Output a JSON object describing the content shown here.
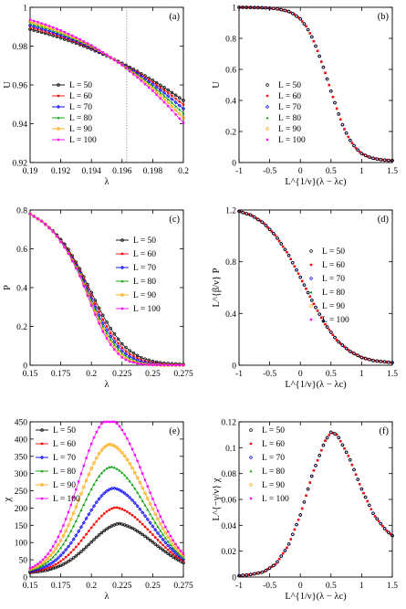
{
  "legend_labels": [
    "L = 50",
    "L = 60",
    "L = 70",
    "L = 80",
    "L = 90",
    "L = 100"
  ],
  "series_colors": [
    "#000000",
    "#ff0000",
    "#0000ff",
    "#00a000",
    "#ffa500",
    "#ff00ff"
  ],
  "chart_data": [
    {
      "panel": "(a)",
      "type": "line",
      "xlabel": "λ",
      "ylabel": "U",
      "xlim": [
        0.19,
        0.2
      ],
      "ylim": [
        0.92,
        1.0
      ],
      "xticks": [
        "0.19",
        "0.192",
        "0.194",
        "0.196",
        "0.198",
        "0.2"
      ],
      "yticks": [
        "0.92",
        "0.94",
        "0.96",
        "0.98",
        "1"
      ],
      "grid": false,
      "legend": "lower-left",
      "vline_x": 0.1963,
      "x": [
        0.19,
        0.191,
        0.192,
        0.193,
        0.194,
        0.195,
        0.196,
        0.197,
        0.198,
        0.199,
        0.2
      ],
      "series": [
        {
          "name": "L = 50",
          "values": [
            0.9887,
            0.9866,
            0.9842,
            0.9815,
            0.9784,
            0.975,
            0.9712,
            0.967,
            0.9624,
            0.9574,
            0.952
          ]
        },
        {
          "name": "L = 60",
          "values": [
            0.9897,
            0.9875,
            0.985,
            0.9821,
            0.9788,
            0.9751,
            0.971,
            0.9664,
            0.9614,
            0.9559,
            0.9499
          ]
        },
        {
          "name": "L = 70",
          "values": [
            0.9907,
            0.9884,
            0.9857,
            0.9827,
            0.9792,
            0.9752,
            0.9708,
            0.9658,
            0.9603,
            0.9543,
            0.9477
          ]
        },
        {
          "name": "L = 80",
          "values": [
            0.9917,
            0.9893,
            0.9865,
            0.9833,
            0.9796,
            0.9754,
            0.9706,
            0.9652,
            0.9592,
            0.9526,
            0.9454
          ]
        },
        {
          "name": "L = 90",
          "values": [
            0.9926,
            0.9902,
            0.9873,
            0.9839,
            0.98,
            0.9755,
            0.9704,
            0.9646,
            0.9581,
            0.9509,
            0.943
          ]
        },
        {
          "name": "L = 100",
          "values": [
            0.9936,
            0.9911,
            0.9881,
            0.9845,
            0.9804,
            0.9756,
            0.9701,
            0.9639,
            0.9569,
            0.9491,
            0.9405
          ]
        }
      ]
    },
    {
      "panel": "(b)",
      "type": "scatter",
      "xlabel": "L^{1/ν}(λ − λc)",
      "ylabel": "U",
      "xlim": [
        -1,
        1.5
      ],
      "ylim": [
        0,
        1.0
      ],
      "xticks": [
        "-1",
        "-0.5",
        "0",
        "0.5",
        "1",
        "1.5"
      ],
      "yticks": [
        "0",
        "0.2",
        "0.4",
        "0.6",
        "0.8",
        "1"
      ],
      "grid": false,
      "legend": "left",
      "x": [
        -1.0,
        -0.8,
        -0.6,
        -0.4,
        -0.2,
        -0.1,
        0.0,
        0.1,
        0.2,
        0.3,
        0.4,
        0.5,
        0.6,
        0.7,
        0.8,
        0.9,
        1.0,
        1.1,
        1.2,
        1.3,
        1.4,
        1.5
      ],
      "values": [
        1.0,
        0.999,
        0.997,
        0.992,
        0.975,
        0.955,
        0.925,
        0.875,
        0.8,
        0.7,
        0.585,
        0.46,
        0.34,
        0.23,
        0.15,
        0.095,
        0.058,
        0.038,
        0.026,
        0.019,
        0.015,
        0.013
      ]
    },
    {
      "panel": "(c)",
      "type": "line",
      "xlabel": "λ",
      "ylabel": "P",
      "xlim": [
        0.15,
        0.275
      ],
      "ylim": [
        0,
        0.8
      ],
      "xticks": [
        "0.15",
        "0.175",
        "0.2",
        "0.225",
        "0.25",
        "0.275"
      ],
      "yticks": [
        "0",
        "0.2",
        "0.4",
        "0.6",
        "0.8"
      ],
      "grid": false,
      "legend": "upper-right",
      "x": [
        0.15,
        0.16,
        0.17,
        0.18,
        0.19,
        0.195,
        0.2,
        0.205,
        0.21,
        0.215,
        0.22,
        0.225,
        0.23,
        0.24,
        0.25,
        0.26,
        0.275
      ],
      "series": [
        {
          "name": "L = 50",
          "values": [
            0.78,
            0.74,
            0.685,
            0.61,
            0.505,
            0.44,
            0.375,
            0.31,
            0.25,
            0.195,
            0.15,
            0.11,
            0.08,
            0.04,
            0.02,
            0.01,
            0.005
          ]
        },
        {
          "name": "L = 60",
          "values": [
            0.78,
            0.74,
            0.684,
            0.605,
            0.495,
            0.428,
            0.358,
            0.29,
            0.228,
            0.172,
            0.128,
            0.09,
            0.062,
            0.028,
            0.012,
            0.005,
            0.002
          ]
        },
        {
          "name": "L = 70",
          "values": [
            0.78,
            0.74,
            0.683,
            0.6,
            0.487,
            0.416,
            0.343,
            0.272,
            0.208,
            0.154,
            0.11,
            0.074,
            0.048,
            0.019,
            0.007,
            0.002,
            0.001
          ]
        },
        {
          "name": "L = 80",
          "values": [
            0.78,
            0.74,
            0.682,
            0.596,
            0.48,
            0.406,
            0.33,
            0.257,
            0.192,
            0.138,
            0.095,
            0.061,
            0.037,
            0.012,
            0.004,
            0.001,
            0.0
          ]
        },
        {
          "name": "L = 90",
          "values": [
            0.78,
            0.74,
            0.681,
            0.593,
            0.474,
            0.397,
            0.319,
            0.244,
            0.178,
            0.124,
            0.082,
            0.05,
            0.028,
            0.008,
            0.002,
            0.0,
            0.0
          ]
        },
        {
          "name": "L = 100",
          "values": [
            0.78,
            0.74,
            0.68,
            0.59,
            0.468,
            0.388,
            0.308,
            0.232,
            0.165,
            0.111,
            0.07,
            0.04,
            0.021,
            0.005,
            0.001,
            0.0,
            0.0
          ]
        }
      ]
    },
    {
      "panel": "(d)",
      "type": "scatter",
      "xlabel": "L^{1/ν}(λ − λc)",
      "ylabel": "L^{β/ν} P",
      "xlim": [
        -1,
        1.5
      ],
      "ylim": [
        0,
        1.2
      ],
      "xticks": [
        "-1",
        "-0.5",
        "0",
        "0.5",
        "1",
        "1.5"
      ],
      "yticks": [
        "0",
        "0.4",
        "0.8",
        "1.2"
      ],
      "grid": false,
      "legend": "right",
      "x": [
        -1.0,
        -0.8,
        -0.6,
        -0.4,
        -0.2,
        0.0,
        0.2,
        0.4,
        0.6,
        0.8,
        1.0,
        1.2,
        1.4,
        1.5
      ],
      "values": [
        1.19,
        1.16,
        1.1,
        1.0,
        0.86,
        0.68,
        0.49,
        0.32,
        0.19,
        0.11,
        0.06,
        0.035,
        0.025,
        0.02
      ]
    },
    {
      "panel": "(e)",
      "type": "line",
      "xlabel": "λ",
      "ylabel": "χ",
      "xlim": [
        0.15,
        0.275
      ],
      "ylim": [
        0,
        450
      ],
      "xticks": [
        "0.15",
        "0.175",
        "0.2",
        "0.225",
        "0.25",
        "0.275"
      ],
      "yticks": [
        "0",
        "50",
        "100",
        "150",
        "200",
        "250",
        "300",
        "350",
        "400",
        "450"
      ],
      "grid": false,
      "legend": "upper-left",
      "series": [
        {
          "name": "L = 50",
          "peak_x": 0.2225,
          "peak_y": 125,
          "base": 5
        },
        {
          "name": "L = 60",
          "peak_x": 0.22,
          "peak_y": 172,
          "base": 5
        },
        {
          "name": "L = 70",
          "peak_x": 0.218,
          "peak_y": 228,
          "base": 5
        },
        {
          "name": "L = 80",
          "peak_x": 0.216,
          "peak_y": 290,
          "base": 5
        },
        {
          "name": "L = 90",
          "peak_x": 0.215,
          "peak_y": 355,
          "base": 5
        },
        {
          "name": "L = 100",
          "peak_x": 0.214,
          "peak_y": 430,
          "base": 5
        }
      ]
    },
    {
      "panel": "(f)",
      "type": "scatter",
      "xlabel": "L^{1/ν}(λ − λc)",
      "ylabel": "L^{−γ/ν} χ",
      "xlim": [
        -1,
        1.5
      ],
      "ylim": [
        0,
        0.12
      ],
      "xticks": [
        "-1",
        "-0.5",
        "0",
        "0.5",
        "1",
        "1.5"
      ],
      "yticks": [
        "0",
        "0.02",
        "0.04",
        "0.06",
        "0.08",
        "0.1",
        "0.12"
      ],
      "grid": false,
      "legend": "left",
      "x": [
        -1.0,
        -0.8,
        -0.6,
        -0.4,
        -0.2,
        0.0,
        0.2,
        0.4,
        0.5,
        0.6,
        0.8,
        1.0,
        1.2,
        1.4,
        1.5
      ],
      "values": [
        0.001,
        0.002,
        0.004,
        0.01,
        0.024,
        0.048,
        0.08,
        0.105,
        0.112,
        0.11,
        0.092,
        0.068,
        0.048,
        0.036,
        0.032
      ]
    }
  ]
}
